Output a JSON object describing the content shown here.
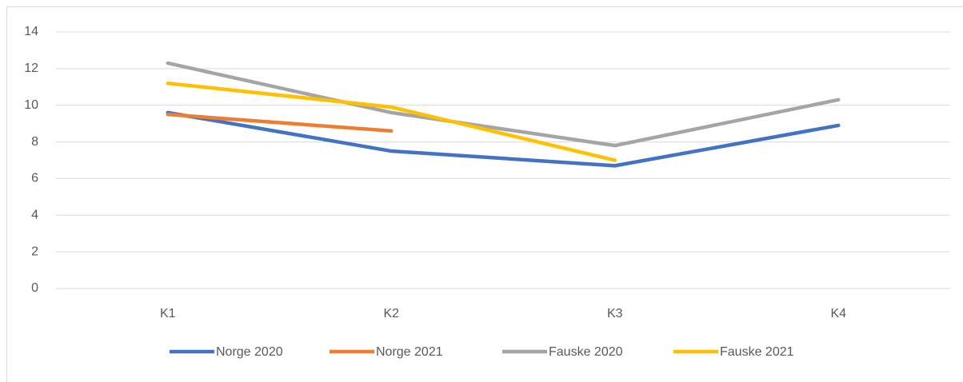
{
  "chart_data": {
    "type": "line",
    "categories": [
      "K1",
      "K2",
      "K3",
      "K4"
    ],
    "series": [
      {
        "name": "Norge 2020",
        "color": "#4472c4",
        "values": [
          9.6,
          7.5,
          6.7,
          8.9
        ]
      },
      {
        "name": "Norge 2021",
        "color": "#ed7d31",
        "values": [
          9.5,
          8.6,
          null,
          null
        ]
      },
      {
        "name": "Fauske 2020",
        "color": "#a5a5a5",
        "values": [
          12.3,
          9.6,
          7.8,
          10.3
        ]
      },
      {
        "name": "Fauske 2021",
        "color": "#ffc000",
        "values": [
          11.2,
          9.9,
          7.0,
          null
        ]
      }
    ],
    "ylim": [
      0,
      14
    ],
    "yticks": [
      0,
      2,
      4,
      6,
      8,
      10,
      12,
      14
    ],
    "grid": true,
    "legend": "bottom"
  }
}
